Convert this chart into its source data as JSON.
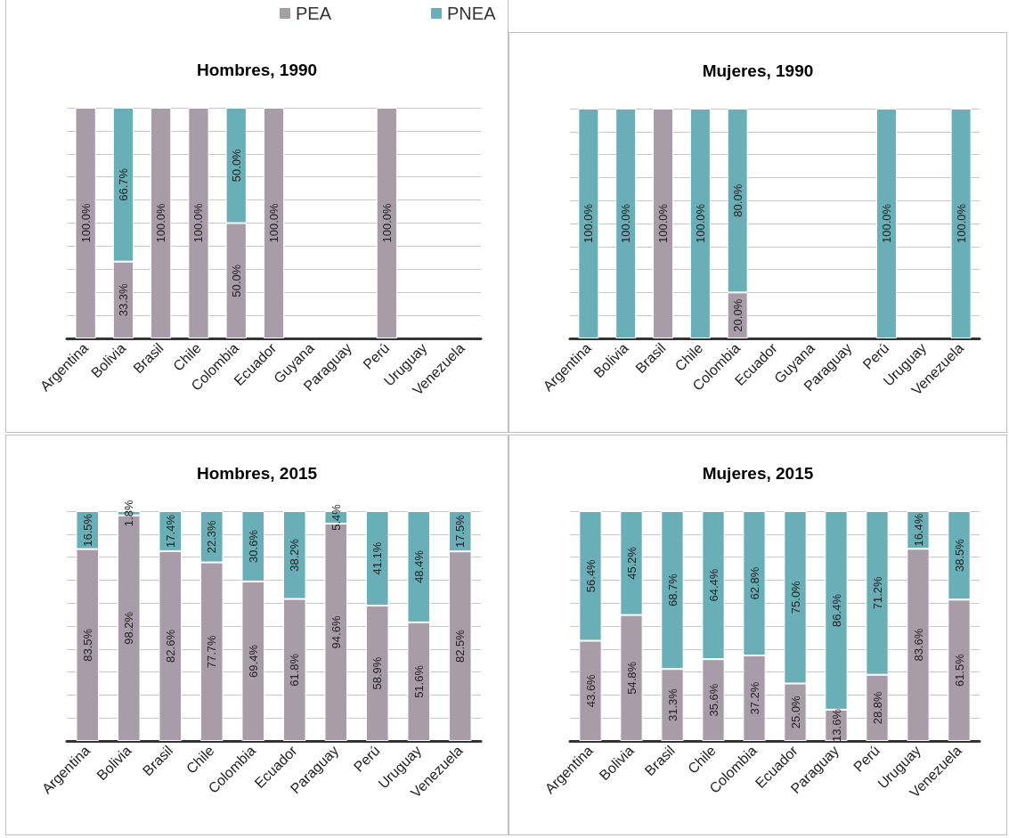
{
  "chart_data": [
    {
      "type": "bar",
      "title": "Hombres, 1990",
      "stacked": true,
      "grid": "y",
      "legend": "top",
      "categories": [
        "Argentina",
        "Bolivia",
        "Brasil",
        "Chile",
        "Colombia",
        "Ecuador",
        "Guyana",
        "Paraguay",
        "Perú",
        "Uruguay",
        "Venezuela"
      ],
      "series": [
        {
          "name": "PEA",
          "color": "#a99ca9",
          "values": [
            100,
            33.3,
            100,
            100,
            50,
            100,
            null,
            null,
            100,
            null,
            null
          ],
          "value_labels": [
            "100.0%",
            "33.3%",
            "100.0%",
            "100.0%",
            "50.0%",
            "100.0%",
            null,
            null,
            "100.0%",
            null,
            null
          ]
        },
        {
          "name": "PNEA",
          "color": "#6aaeb7",
          "values": [
            null,
            66.7,
            null,
            null,
            50,
            null,
            null,
            null,
            null,
            null,
            null
          ],
          "value_labels": [
            null,
            "66.7%",
            null,
            null,
            "50.0%",
            null,
            null,
            null,
            null,
            null,
            null
          ]
        }
      ]
    },
    {
      "type": "bar",
      "title": "Mujeres, 1990",
      "stacked": true,
      "grid": "y",
      "categories": [
        "Argentina",
        "Bolivia",
        "Brasil",
        "Chile",
        "Colombia",
        "Ecuador",
        "Guyana",
        "Paraguay",
        "Perú",
        "Uruguay",
        "Venezuela"
      ],
      "series": [
        {
          "color": "#a99ca9",
          "values": [
            null,
            null,
            100,
            null,
            20,
            null,
            null,
            null,
            null,
            null,
            null
          ],
          "value_labels": [
            null,
            null,
            "100.0%",
            null,
            "20.0%",
            null,
            null,
            null,
            null,
            null,
            null
          ]
        },
        {
          "color": "#6aaeb7",
          "values": [
            100,
            100,
            null,
            100,
            80,
            null,
            null,
            null,
            100,
            null,
            100
          ],
          "value_labels": [
            "100.0%",
            "100.0%",
            null,
            "100.0%",
            "80.0%",
            null,
            null,
            null,
            "100.0%",
            null,
            "100.0%"
          ]
        }
      ]
    },
    {
      "type": "bar",
      "title": "Hombres, 2015",
      "stacked": true,
      "grid": "y",
      "categories": [
        "Argentina",
        "Bolivia",
        "Brasil",
        "Chile",
        "Colombia",
        "Ecuador",
        "Paraguay",
        "Perú",
        "Uruguay",
        "Venezuela"
      ],
      "series": [
        {
          "color": "#a99ca9",
          "values": [
            83.5,
            98.2,
            82.6,
            77.7,
            69.4,
            61.8,
            94.6,
            58.9,
            51.6,
            82.5
          ],
          "value_labels": [
            "83.5%",
            "98.2%",
            "82.6%",
            "77.7%",
            "69.4%",
            "61.8%",
            "94.6%",
            "58.9%",
            "51.6%",
            "82.5%"
          ]
        },
        {
          "color": "#6aaeb7",
          "values": [
            16.5,
            1.8,
            17.4,
            22.3,
            30.6,
            38.2,
            5.4,
            41.1,
            48.4,
            17.5
          ],
          "value_labels": [
            "16.5%",
            "1.8%",
            "17.4%",
            "22.3%",
            "30.6%",
            "38.2%",
            "5.4%",
            "41.1%",
            "48.4%",
            "17.5%"
          ]
        }
      ]
    },
    {
      "type": "bar",
      "title": "Mujeres, 2015",
      "stacked": true,
      "grid": "y",
      "categories": [
        "Argentina",
        "Bolivia",
        "Brasil",
        "Chile",
        "Colombia",
        "Ecuador",
        "Paraguay",
        "Perú",
        "Uruguay",
        "Venezuela"
      ],
      "series": [
        {
          "color": "#a99ca9",
          "values": [
            43.6,
            54.8,
            31.3,
            35.6,
            37.2,
            25.0,
            13.6,
            28.8,
            83.6,
            61.5
          ],
          "value_labels": [
            "43.6%",
            "54.8%",
            "31.3%",
            "35.6%",
            "37.2%",
            "25.0%",
            "13.6%",
            "28.8%",
            "83.6%",
            "61.5%"
          ]
        },
        {
          "color": "#6aaeb7",
          "values": [
            56.4,
            45.2,
            68.7,
            64.4,
            62.8,
            75.0,
            86.4,
            71.2,
            16.4,
            38.5
          ],
          "value_labels": [
            "56.4%",
            "45.2%",
            "68.7%",
            "64.4%",
            "62.8%",
            "75.0%",
            "86.4%",
            "71.2%",
            "16.4%",
            "38.5%"
          ]
        }
      ]
    }
  ]
}
